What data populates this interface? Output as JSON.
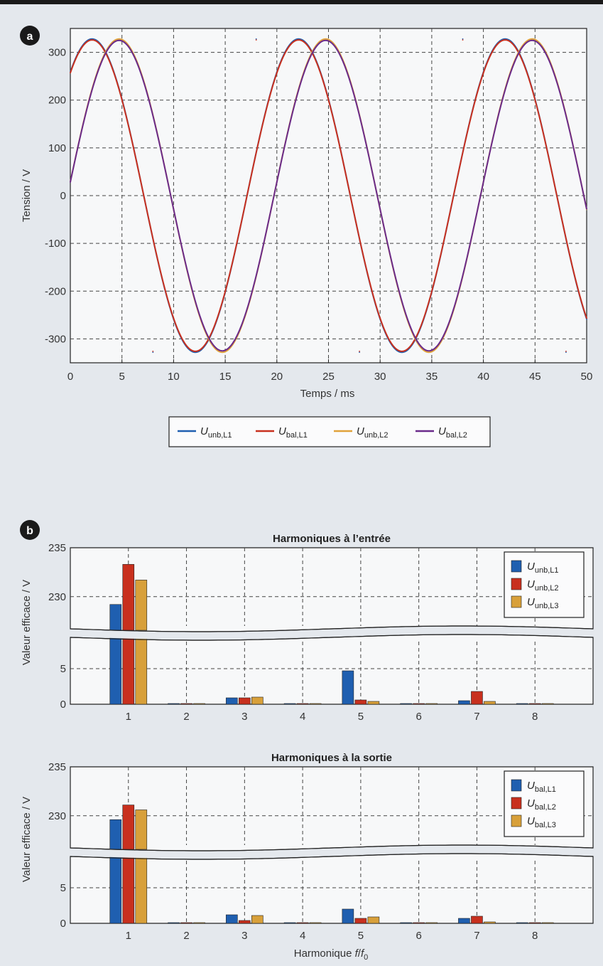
{
  "panel_a": {
    "badge": "a",
    "xlabel": "Temps / ms",
    "ylabel": "Tension / V"
  },
  "panel_b": {
    "badge": "b",
    "ylabel": "Valeur efficace / V",
    "xlabel_main": "Harmonique ",
    "xlabel_f": "f",
    "xlabel_slash": "/",
    "xlabel_f0": "f",
    "xlabel_f0_sub": "0"
  },
  "chart_data": [
    {
      "type": "line",
      "xlabel": "Temps / ms",
      "ylabel": "Tension / V",
      "xlim": [
        0,
        50
      ],
      "ylim": [
        -350,
        350
      ],
      "xticks": [
        0,
        5,
        10,
        15,
        20,
        25,
        30,
        35,
        40,
        45,
        50
      ],
      "yticks": [
        -300,
        -200,
        -100,
        0,
        100,
        200,
        300
      ],
      "grid": true,
      "legend_position": "bottom",
      "description_of_data": "sinusoids, period 20 ms",
      "series": [
        {
          "name": "U",
          "sub": "unb,L1",
          "color": "#1f5fb0",
          "amplitude": 328,
          "phase_deg": 52,
          "x": [
            0,
            5,
            8,
            10,
            15,
            18,
            20,
            25,
            28,
            30,
            35,
            38,
            40,
            45,
            48,
            50
          ],
          "y": [
            259,
            202,
            -328,
            -259,
            -202,
            328,
            259,
            202,
            -328,
            -259,
            -202,
            328,
            259,
            202,
            -328,
            -259
          ]
        },
        {
          "name": "U",
          "sub": "bal,L1",
          "color": "#c8301e",
          "amplitude": 326,
          "phase_deg": 52,
          "x": [
            0,
            5,
            8,
            10,
            15,
            18,
            20,
            25,
            28,
            30,
            35,
            38,
            40,
            45,
            48,
            50
          ],
          "y": [
            257,
            200,
            -326,
            -257,
            -200,
            326,
            257,
            200,
            -326,
            -257,
            -200,
            326,
            257,
            200,
            -326,
            -257
          ]
        },
        {
          "name": "U",
          "sub": "unb,L2",
          "color": "#e0a23a",
          "amplitude": 328,
          "phase_deg": 5,
          "x": [
            0,
            5,
            10,
            15,
            20,
            25,
            30,
            35,
            40,
            45,
            50
          ],
          "y": [
            29,
            327,
            -29,
            -327,
            29,
            327,
            -29,
            -327,
            29,
            327,
            -29
          ]
        },
        {
          "name": "U",
          "sub": "bal,L2",
          "color": "#6a2a8a",
          "amplitude": 325,
          "phase_deg": 5,
          "x": [
            0,
            5,
            10,
            15,
            20,
            25,
            30,
            35,
            40,
            45,
            50
          ],
          "y": [
            28,
            324,
            -28,
            -324,
            28,
            324,
            -28,
            -324,
            28,
            324,
            -28
          ]
        }
      ]
    },
    {
      "type": "bar",
      "title": "Harmoniques à l’entrée",
      "ylabel": "Valeur efficace / V",
      "categories": [
        "1",
        "2",
        "3",
        "4",
        "5",
        "6",
        "7",
        "8"
      ],
      "axis_break": true,
      "yticks": [
        0,
        5,
        230,
        235
      ],
      "grid": true,
      "legend_position": "top-right",
      "series": [
        {
          "name": "U",
          "sub": "unb,L1",
          "color": "#1f5fb0",
          "values": [
            229.2,
            0.05,
            0.9,
            0.03,
            4.7,
            0.1,
            0.5,
            0.02
          ]
        },
        {
          "name": "U",
          "sub": "unb,L2",
          "color": "#c8301e",
          "values": [
            233.3,
            0.05,
            0.9,
            0.03,
            0.6,
            0.1,
            1.8,
            0.02
          ]
        },
        {
          "name": "U",
          "sub": "unb,L3",
          "color": "#d8a03a",
          "values": [
            231.7,
            0.03,
            1.0,
            0.03,
            0.4,
            0.1,
            0.4,
            0.02
          ]
        }
      ]
    },
    {
      "type": "bar",
      "title": "Harmoniques à la sortie",
      "ylabel": "Valeur efficace / V",
      "xlabel": "Harmonique f/f0",
      "categories": [
        "1",
        "2",
        "3",
        "4",
        "5",
        "6",
        "7",
        "8"
      ],
      "axis_break": true,
      "yticks": [
        0,
        5,
        230,
        235
      ],
      "grid": true,
      "legend_position": "top-right",
      "series": [
        {
          "name": "U",
          "sub": "bal,L1",
          "color": "#1f5fb0",
          "values": [
            229.6,
            0.05,
            1.2,
            0.03,
            2.0,
            0.1,
            0.7,
            0.02
          ]
        },
        {
          "name": "U",
          "sub": "bal,L2",
          "color": "#c8301e",
          "values": [
            231.1,
            0.05,
            0.4,
            0.03,
            0.7,
            0.1,
            1.0,
            0.02
          ]
        },
        {
          "name": "U",
          "sub": "bal,L3",
          "color": "#d8a03a",
          "values": [
            230.6,
            0.03,
            1.1,
            0.03,
            0.9,
            0.1,
            0.2,
            0.02
          ]
        }
      ]
    }
  ]
}
